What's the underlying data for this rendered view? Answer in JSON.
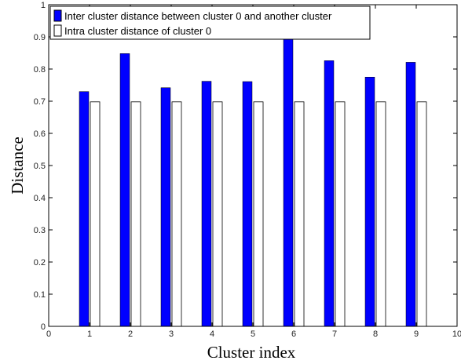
{
  "chart_data": {
    "type": "bar",
    "xlabel": "Cluster index",
    "ylabel": "Distance",
    "xlim": [
      0,
      10
    ],
    "ylim": [
      0,
      1
    ],
    "x_ticks": [
      "0",
      "1",
      "2",
      "3",
      "4",
      "5",
      "6",
      "7",
      "8",
      "9",
      "10"
    ],
    "y_ticks": [
      "0",
      "0.1",
      "0.2",
      "0.3",
      "0.4",
      "0.5",
      "0.6",
      "0.7",
      "0.8",
      "0.9",
      "1"
    ],
    "grid": false,
    "legend_position": "top-left",
    "categories": [
      1,
      2,
      3,
      4,
      5,
      6,
      7,
      8,
      9
    ],
    "series": [
      {
        "name": "Inter cluster distance between cluster 0 and another cluster",
        "color": "#0000ff",
        "values": [
          0.73,
          0.848,
          0.742,
          0.762,
          0.761,
          0.893,
          0.826,
          0.775,
          0.821
        ]
      },
      {
        "name": "Intra cluster distance of cluster 0",
        "color": "#ffffff",
        "values": [
          0.698,
          0.698,
          0.698,
          0.698,
          0.698,
          0.698,
          0.698,
          0.698,
          0.698
        ]
      }
    ]
  }
}
